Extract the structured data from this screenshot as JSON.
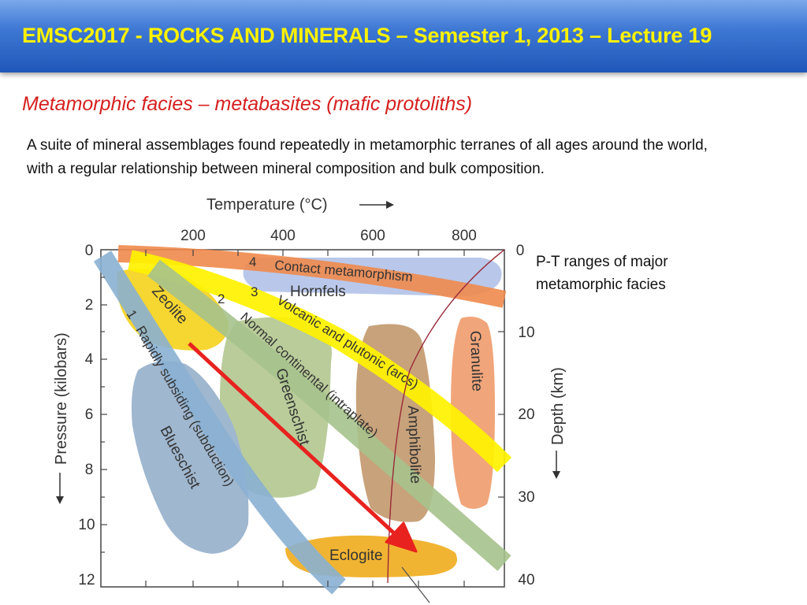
{
  "header": {
    "title": "EMSC2017 - ROCKS AND MINERALS – Semester 1, 2013 – Lecture 19"
  },
  "slide": {
    "heading": "Metamorphic facies – metabasites (mafic protoliths)",
    "body": "A suite of mineral assemblages found repeatedly in metamorphic terranes of all ages around the world, with a regular relationship between mineral composition and bulk composition.",
    "caption": "P-T ranges of major metamorphic facies"
  },
  "diagram": {
    "temperature_axis_title": "Temperature (°C)",
    "temperature_ticks": [
      "200",
      "400",
      "600",
      "800"
    ],
    "pressure_axis_title": "Pressure (kilobars)",
    "pressure_ticks": [
      "0",
      "2",
      "4",
      "6",
      "8",
      "10",
      "12"
    ],
    "depth_axis_title": "Depth (km)",
    "depth_ticks": [
      "0",
      "10",
      "20",
      "30",
      "40"
    ],
    "facies": {
      "zeolite": "Zeolite",
      "hornfels": "Hornfels",
      "greenschist": "Greenschist",
      "amphibolite": "Amphibolite",
      "granulite": "Granulite",
      "blueschist": "Blueschist",
      "eclogite": "Eclogite"
    },
    "gradients": {
      "g1_number": "1",
      "g1_label": "Rapidly subsiding (subduction)",
      "g2_number": "2",
      "g2_label": "Normal continental (intraplate)",
      "g3_number": "3",
      "g3_label": "Volcanic and plutonic (arcs)",
      "g4_number": "4",
      "g4_label": "Contact metamorphism"
    },
    "colors": {
      "zeolite": "#f6d630",
      "hornfels": "#b9c8ea",
      "greenschist": "#b9cc9a",
      "amphibolite": "#c8a27a",
      "granulite": "#f1a57a",
      "blueschist": "#9fb7cf",
      "eclogite": "#f1b432",
      "band_subduction": "#8ab0d2",
      "band_continental": "#a6c28c",
      "band_arcs": "#fff200",
      "band_contact": "#ef8a4c",
      "arrow": "#e8221e"
    }
  }
}
